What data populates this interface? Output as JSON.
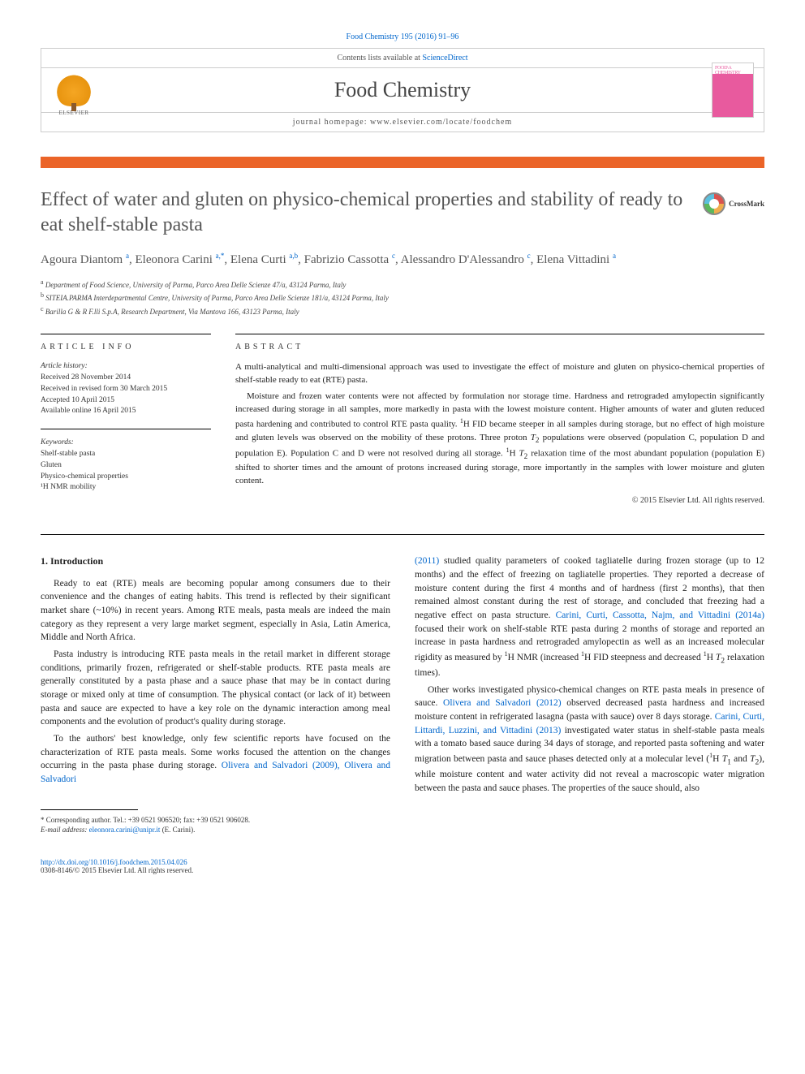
{
  "citation": "Food Chemistry 195 (2016) 91–96",
  "header": {
    "contents_line_prefix": "Contents lists available at ",
    "contents_link": "ScienceDirect",
    "journal_name": "Food Chemistry",
    "homepage_prefix": "journal homepage: ",
    "homepage_url": "www.elsevier.com/locate/foodchem",
    "publisher": "ELSEVIER",
    "cover_text": "FOOD\\A CHEMISTRY"
  },
  "title": "Effect of water and gluten on physico-chemical properties and stability of ready to eat shelf-stable pasta",
  "crossmark": "CrossMark",
  "authors_html": "Agoura Diantom <sup>a</sup>, Eleonora Carini <sup>a,*</sup>, Elena Curti <sup>a,b</sup>, Fabrizio Cassotta <sup>c</sup>, Alessandro D'Alessandro <sup>c</sup>, Elena Vittadini <sup>a</sup>",
  "affiliations": {
    "a": "Department of Food Science, University of Parma, Parco Area Delle Scienze 47/a, 43124 Parma, Italy",
    "b": "SITEIA.PARMA Interdepartmental Centre, University of Parma, Parco Area Delle Scienze 181/a, 43124 Parma, Italy",
    "c": "Barilla G & R F.lli S.p.A, Research Department, Via Mantova 166, 43123 Parma, Italy"
  },
  "article_info": {
    "heading": "ARTICLE INFO",
    "history_label": "Article history:",
    "received": "Received 28 November 2014",
    "revised": "Received in revised form 30 March 2015",
    "accepted": "Accepted 10 April 2015",
    "online": "Available online 16 April 2015",
    "keywords_label": "Keywords:",
    "keywords": [
      "Shelf-stable pasta",
      "Gluten",
      "Physico-chemical properties",
      "¹H NMR mobility"
    ]
  },
  "abstract": {
    "heading": "ABSTRACT",
    "p1": "A multi-analytical and multi-dimensional approach was used to investigate the effect of moisture and gluten on physico-chemical properties of shelf-stable ready to eat (RTE) pasta.",
    "p2": "Moisture and frozen water contents were not affected by formulation nor storage time. Hardness and retrograded amylopectin significantly increased during storage in all samples, more markedly in pasta with the lowest moisture content. Higher amounts of water and gluten reduced pasta hardening and contributed to control RTE pasta quality. ¹H FID became steeper in all samples during storage, but no effect of high moisture and gluten levels was observed on the mobility of these protons. Three proton T₂ populations were observed (population C, population D and population E). Population C and D were not resolved during all storage. ¹H T₂ relaxation time of the most abundant population (population E) shifted to shorter times and the amount of protons increased during storage, more importantly in the samples with lower moisture and gluten content.",
    "copyright": "© 2015 Elsevier Ltd. All rights reserved."
  },
  "body": {
    "section_heading": "1. Introduction",
    "left": {
      "p1": "Ready to eat (RTE) meals are becoming popular among consumers due to their convenience and the changes of eating habits. This trend is reflected by their significant market share (~10%) in recent years. Among RTE meals, pasta meals are indeed the main category as they represent a very large market segment, especially in Asia, Latin America, Middle and North Africa.",
      "p2": "Pasta industry is introducing RTE pasta meals in the retail market in different storage conditions, primarily frozen, refrigerated or shelf-stable products. RTE pasta meals are generally constituted by a pasta phase and a sauce phase that may be in contact during storage or mixed only at time of consumption. The physical contact (or lack of it) between pasta and sauce are expected to have a key role on the dynamic interaction among meal components and the evolution of product's quality during storage.",
      "p3_pre": "To the authors' best knowledge, only few scientific reports have focused on the characterization of RTE pasta meals. Some works focused the attention on the changes occurring in the pasta phase during storage. ",
      "p3_link": "Olivera and Salvadori (2009), Olivera and Salvadori"
    },
    "right": {
      "p1_link": "(2011)",
      "p1_post": " studied quality parameters of cooked tagliatelle during frozen storage (up to 12 months) and the effect of freezing on tagliatelle properties. They reported a decrease of moisture content during the first 4 months and of hardness (first 2 months), that then remained almost constant during the rest of storage, and concluded that freezing had a negative effect on pasta structure. ",
      "p1_link2": "Carini, Curti, Cassotta, Najm, and Vittadini (2014a)",
      "p1_post2": " focused their work on shelf-stable RTE pasta during 2 months of storage and reported an increase in pasta hardness and retrograded amylopectin as well as an increased molecular rigidity as measured by ¹H NMR (increased ¹H FID steepness and decreased ¹H T₂ relaxation times).",
      "p2_pre": "Other works investigated physico-chemical changes on RTE pasta meals in presence of sauce. ",
      "p2_link1": "Olivera and Salvadori (2012)",
      "p2_mid1": " observed decreased pasta hardness and increased moisture content in refrigerated lasagna (pasta with sauce) over 8 days storage. ",
      "p2_link2": "Carini, Curti, Littardi, Luzzini, and Vittadini (2013)",
      "p2_post": " investigated water status in shelf-stable pasta meals with a tomato based sauce during 34 days of storage, and reported pasta softening and water migration between pasta and sauce phases detected only at a molecular level (¹H T₁ and T₂), while moisture content and water activity did not reveal a macroscopic water migration between the pasta and sauce phases. The properties of the sauce should, also"
    }
  },
  "footnote": {
    "corresponding": "* Corresponding author. Tel.: +39 0521 906520; fax: +39 0521 906028.",
    "email_label": "E-mail address:",
    "email": "eleonora.carini@unipr.it",
    "email_name": "(E. Carini)."
  },
  "footer": {
    "doi": "http://dx.doi.org/10.1016/j.foodchem.2015.04.026",
    "issn_line": "0308-8146/© 2015 Elsevier Ltd. All rights reserved."
  },
  "colors": {
    "link": "#0066cc",
    "accent_bar": "#eb6428",
    "cover_pink": "#e85a9e",
    "text_muted": "#555"
  }
}
